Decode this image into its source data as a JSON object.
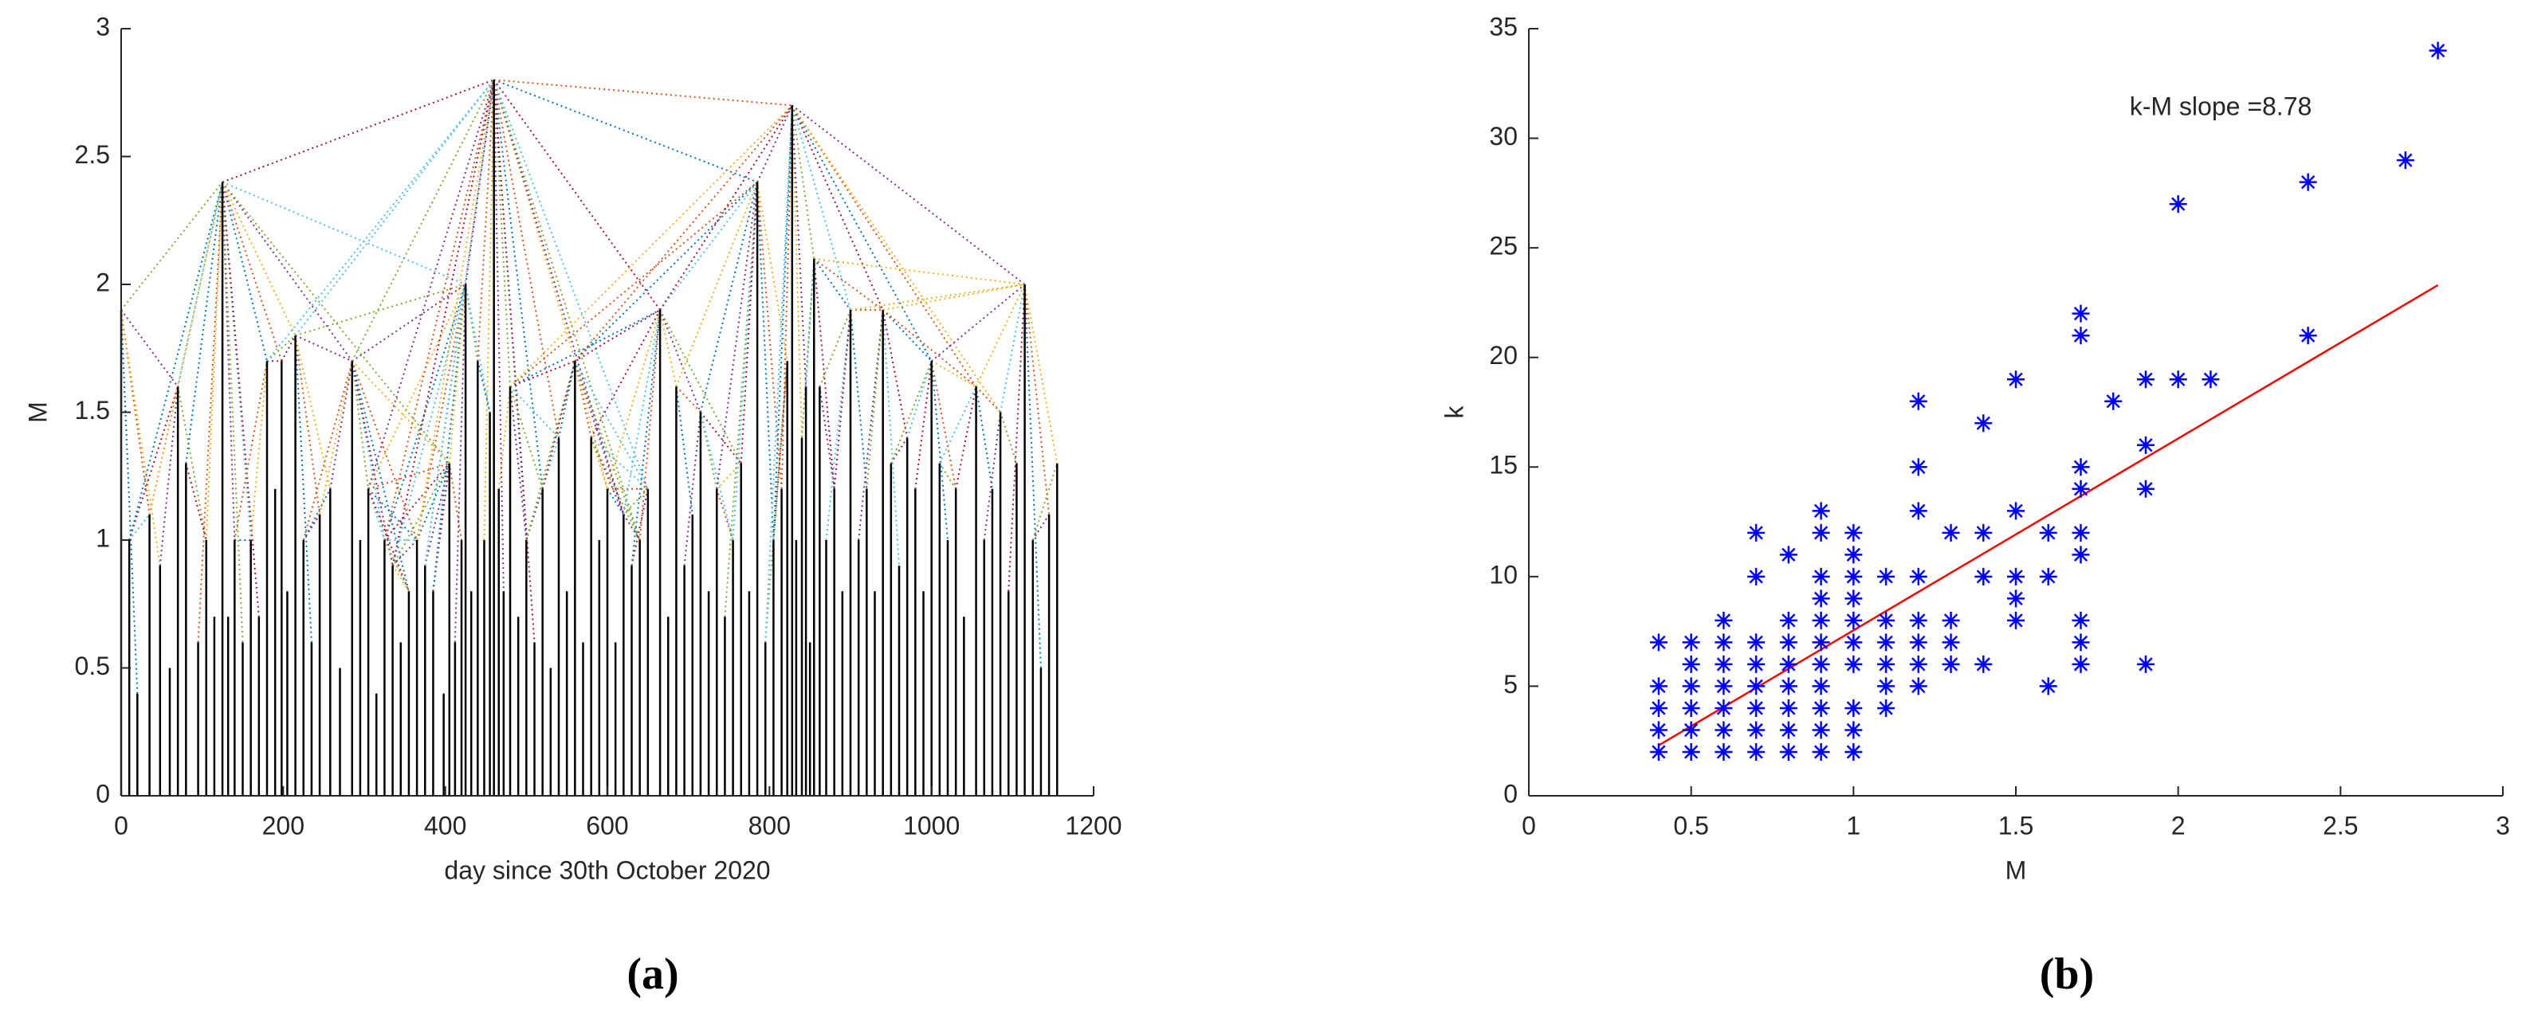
{
  "chart_data": [
    {
      "type": "bar",
      "caption": "(a)",
      "xlabel": "day  since 30th October 2020",
      "ylabel": "M",
      "color": "#000000",
      "edge_colors": [
        "#0072bd",
        "#d95319",
        "#edb120",
        "#7e2f8e",
        "#77ac30",
        "#4dbeee",
        "#a2142f"
      ],
      "x": [
        0,
        10,
        20,
        35,
        48,
        60,
        70,
        80,
        95,
        105,
        115,
        125,
        132,
        140,
        150,
        160,
        170,
        180,
        190,
        198,
        205,
        215,
        225,
        235,
        245,
        258,
        270,
        285,
        295,
        305,
        315,
        325,
        335,
        345,
        355,
        365,
        375,
        385,
        398,
        405,
        412,
        420,
        425,
        432,
        440,
        448,
        455,
        460,
        466,
        472,
        480,
        490,
        500,
        510,
        520,
        530,
        540,
        550,
        560,
        570,
        580,
        590,
        600,
        610,
        620,
        630,
        640,
        650,
        665,
        675,
        685,
        695,
        705,
        715,
        725,
        735,
        745,
        755,
        765,
        775,
        785,
        795,
        805,
        815,
        822,
        828,
        833,
        840,
        845,
        850,
        855,
        862,
        870,
        880,
        890,
        900,
        910,
        920,
        930,
        940,
        950,
        960,
        970,
        980,
        990,
        1000,
        1010,
        1020,
        1030,
        1040,
        1055,
        1065,
        1075,
        1085,
        1095,
        1105,
        1115,
        1125,
        1135,
        1145,
        1155
      ],
      "values": [
        1.9,
        1.0,
        0.4,
        1.1,
        0.9,
        0.5,
        1.6,
        1.3,
        0.6,
        1.0,
        0.7,
        2.4,
        0.7,
        1.0,
        0.6,
        1.0,
        0.7,
        1.7,
        1.2,
        1.7,
        0.8,
        1.8,
        1.0,
        0.6,
        1.1,
        1.2,
        0.5,
        1.7,
        1.0,
        1.2,
        0.4,
        1.0,
        0.9,
        0.6,
        0.8,
        1.0,
        0.9,
        0.8,
        0.4,
        1.3,
        0.6,
        1.0,
        2.0,
        0.8,
        1.7,
        1.0,
        1.5,
        2.8,
        1.2,
        0.8,
        1.6,
        0.7,
        1.0,
        0.6,
        1.2,
        0.5,
        1.4,
        0.8,
        1.7,
        0.6,
        1.4,
        1.0,
        1.2,
        0.6,
        1.1,
        0.9,
        1.0,
        1.2,
        1.9,
        0.7,
        1.6,
        0.9,
        1.1,
        1.5,
        0.8,
        1.2,
        0.7,
        1.0,
        1.3,
        0.8,
        2.4,
        0.6,
        1.0,
        1.2,
        1.7,
        2.7,
        1.0,
        1.4,
        1.6,
        0.6,
        2.1,
        1.6,
        1.0,
        1.2,
        0.8,
        1.9,
        1.0,
        1.2,
        0.8,
        1.9,
        1.3,
        0.9,
        1.4,
        1.2,
        0.8,
        1.7,
        1.3,
        1.0,
        1.2,
        0.7,
        1.6,
        1.0,
        1.2,
        1.5,
        0.8,
        1.3,
        2.0,
        1.0,
        0.5,
        1.1,
        1.3
      ],
      "xlim": [
        0,
        1200
      ],
      "xticks": [
        0,
        200,
        400,
        600,
        800,
        1000,
        1200
      ],
      "ylim": [
        0,
        3
      ],
      "yticks": [
        0,
        0.5,
        1,
        1.5,
        2,
        2.5,
        3
      ]
    },
    {
      "type": "scatter",
      "caption": "(b)",
      "xlabel": "M",
      "ylabel": "k",
      "annotation": "k-M slope =8.78",
      "color": "#0000ff",
      "x": [
        0.4,
        0.4,
        0.4,
        0.4,
        0.4,
        0.5,
        0.5,
        0.5,
        0.5,
        0.5,
        0.5,
        0.6,
        0.6,
        0.6,
        0.6,
        0.6,
        0.6,
        0.6,
        0.7,
        0.7,
        0.7,
        0.7,
        0.7,
        0.7,
        0.7,
        0.7,
        0.8,
        0.8,
        0.8,
        0.8,
        0.8,
        0.8,
        0.8,
        0.8,
        0.9,
        0.9,
        0.9,
        0.9,
        0.9,
        0.9,
        0.9,
        0.9,
        0.9,
        0.9,
        0.9,
        1.0,
        1.0,
        1.0,
        1.0,
        1.0,
        1.0,
        1.0,
        1.0,
        1.0,
        1.0,
        1.1,
        1.1,
        1.1,
        1.1,
        1.1,
        1.1,
        1.2,
        1.2,
        1.2,
        1.2,
        1.2,
        1.2,
        1.2,
        1.2,
        1.3,
        1.3,
        1.3,
        1.3,
        1.4,
        1.4,
        1.4,
        1.4,
        1.5,
        1.5,
        1.5,
        1.5,
        1.5,
        1.6,
        1.6,
        1.6,
        1.7,
        1.7,
        1.7,
        1.7,
        1.7,
        1.7,
        1.7,
        1.7,
        1.7,
        1.8,
        1.9,
        1.9,
        1.9,
        1.9,
        2.0,
        2.0,
        2.1,
        2.4,
        2.4,
        2.7,
        2.8
      ],
      "y": [
        2,
        3,
        4,
        5,
        7,
        2,
        3,
        4,
        5,
        6,
        7,
        2,
        3,
        4,
        5,
        6,
        7,
        8,
        2,
        3,
        4,
        5,
        6,
        7,
        10,
        12,
        2,
        3,
        4,
        5,
        6,
        7,
        8,
        11,
        2,
        3,
        4,
        5,
        6,
        7,
        8,
        9,
        10,
        12,
        13,
        2,
        3,
        4,
        6,
        7,
        8,
        9,
        10,
        11,
        12,
        4,
        5,
        6,
        7,
        8,
        10,
        5,
        6,
        7,
        8,
        10,
        13,
        15,
        18,
        6,
        7,
        8,
        12,
        6,
        10,
        12,
        17,
        8,
        9,
        10,
        13,
        19,
        5,
        10,
        12,
        6,
        7,
        8,
        11,
        12,
        14,
        15,
        21,
        22,
        18,
        6,
        14,
        16,
        19,
        19,
        27,
        19,
        21,
        28,
        29,
        34
      ],
      "fit_line": {
        "x": [
          0.4,
          2.8
        ],
        "y": [
          2.3,
          23.3
        ],
        "color": "#ff0000"
      },
      "xlim": [
        0,
        3
      ],
      "xticks": [
        0,
        0.5,
        1,
        1.5,
        2,
        2.5,
        3
      ],
      "ylim": [
        0,
        35
      ],
      "yticks": [
        0,
        5,
        10,
        15,
        20,
        25,
        30,
        35
      ]
    }
  ]
}
